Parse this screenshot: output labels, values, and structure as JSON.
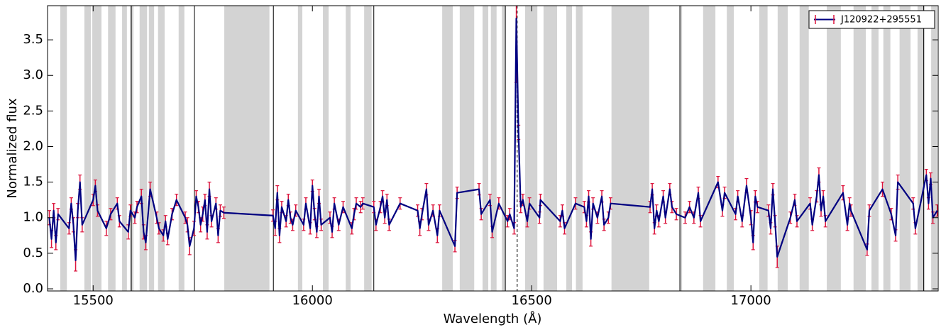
{
  "chart_data": {
    "type": "errorbar",
    "xlabel": "Wavelength (Å)",
    "ylabel": "Normalized flux",
    "xlim": [
      15396,
      17427
    ],
    "ylim": [
      -0.03,
      3.98
    ],
    "xticks": [
      15500,
      16000,
      16500,
      17000
    ],
    "yticks": [
      {
        "value": 0,
        "label": "0.0"
      },
      0.5,
      {
        "value": 1,
        "label": "1.0"
      },
      1.5,
      {
        "value": 2,
        "label": "2.0"
      },
      2.5,
      {
        "value": 3,
        "label": "3.0"
      },
      3.5
    ],
    "legend": "upper right",
    "error_color": "#dc143c",
    "shade_color": "#d3d3d3",
    "shaded_regions": [
      [
        15425,
        15440
      ],
      [
        15480,
        15495
      ],
      [
        15498,
        15519
      ],
      [
        15534,
        15551
      ],
      [
        15566,
        15577
      ],
      [
        15584,
        15592
      ],
      [
        15606,
        15623
      ],
      [
        15627,
        15639
      ],
      [
        15648,
        15663
      ],
      [
        15695,
        15708
      ],
      [
        15799,
        15902
      ],
      [
        15967,
        15977
      ],
      [
        16024,
        16037
      ],
      [
        16076,
        16087
      ],
      [
        16118,
        16135
      ],
      [
        16296,
        16320
      ],
      [
        16336,
        16369
      ],
      [
        16388,
        16401
      ],
      [
        16407,
        16420
      ],
      [
        16432,
        16440
      ],
      [
        16485,
        16513
      ],
      [
        16527,
        16558
      ],
      [
        16579,
        16592
      ],
      [
        16601,
        16616
      ],
      [
        16682,
        16768
      ],
      [
        16838,
        16843
      ],
      [
        16891,
        16919
      ],
      [
        16945,
        16961
      ],
      [
        17019,
        17038
      ],
      [
        17061,
        17084
      ],
      [
        17111,
        17132
      ],
      [
        17173,
        17205
      ],
      [
        17234,
        17262
      ],
      [
        17275,
        17291
      ],
      [
        17302,
        17318
      ],
      [
        17339,
        17364
      ],
      [
        17380,
        17396
      ],
      [
        17411,
        17424
      ]
    ],
    "vertical_lines": [
      15587,
      15731,
      15911,
      16140,
      16440,
      16838,
      17394
    ],
    "dashed_line": 16467,
    "series": [
      {
        "name": "J120922+295551",
        "color": "#000080",
        "x": [
          15400,
          15405,
          15410,
          15415,
          15420,
          15445,
          15450,
          15455,
          15460,
          15465,
          15470,
          15475,
          15500,
          15505,
          15510,
          15530,
          15540,
          15555,
          15560,
          15580,
          15585,
          15595,
          15600,
          15610,
          15615,
          15620,
          15630,
          15645,
          15650,
          15660,
          15665,
          15670,
          15680,
          15690,
          15710,
          15715,
          15720,
          15730,
          15735,
          15740,
          15745,
          15750,
          15755,
          15760,
          15765,
          15770,
          15780,
          15785,
          15790,
          15798,
          15910,
          15915,
          15920,
          15925,
          15930,
          15940,
          15945,
          15950,
          15955,
          15962,
          15980,
          15985,
          15995,
          16000,
          16005,
          16010,
          16015,
          16020,
          16040,
          16045,
          16050,
          16060,
          16070,
          16090,
          16095,
          16100,
          16110,
          16115,
          16140,
          16145,
          16155,
          16160,
          16165,
          16170,
          16175,
          16200,
          16240,
          16245,
          16250,
          16260,
          16265,
          16275,
          16285,
          16290,
          16325,
          16330,
          16380,
          16385,
          16405,
          16410,
          16425,
          16445,
          16450,
          16460,
          16465,
          16470,
          16475,
          16480,
          16490,
          16495,
          16518,
          16520,
          16565,
          16570,
          16575,
          16600,
          16620,
          16625,
          16630,
          16635,
          16640,
          16650,
          16660,
          16665,
          16675,
          16680,
          16770,
          16775,
          16780,
          16785,
          16790,
          16800,
          16805,
          16815,
          16820,
          16830,
          16850,
          16860,
          16870,
          16880,
          16885,
          16925,
          16935,
          16940,
          16965,
          16970,
          16980,
          16990,
          17000,
          17005,
          17010,
          17015,
          17040,
          17045,
          17050,
          17055,
          17060,
          17090,
          17100,
          17105,
          17135,
          17140,
          17150,
          17155,
          17160,
          17165,
          17170,
          17210,
          17220,
          17225,
          17228,
          17265,
          17270,
          17300,
          17320,
          17330,
          17335,
          17370,
          17375,
          17400,
          17405,
          17410,
          17415,
          17425
        ],
        "values": [
          1.0,
          0.7,
          1.1,
          0.65,
          1.05,
          0.85,
          1.2,
          0.9,
          0.4,
          1.1,
          1.5,
          0.9,
          1.25,
          1.45,
          1.1,
          0.85,
          1.05,
          1.2,
          0.95,
          0.8,
          1.1,
          1.0,
          1.15,
          1.3,
          0.8,
          0.65,
          1.4,
          1.0,
          0.85,
          0.75,
          0.95,
          0.7,
          1.05,
          1.25,
          1.0,
          0.9,
          0.6,
          0.85,
          1.3,
          1.15,
          0.9,
          1.05,
          1.25,
          0.8,
          1.4,
          0.95,
          1.2,
          0.75,
          1.1,
          1.07,
          1.03,
          0.85,
          1.35,
          0.75,
          1.15,
          0.95,
          1.25,
          1.0,
          0.9,
          1.1,
          0.9,
          1.2,
          0.85,
          1.45,
          1.05,
          0.8,
          1.3,
          0.9,
          1.0,
          0.8,
          1.2,
          0.9,
          1.15,
          0.85,
          1.05,
          1.2,
          1.15,
          1.2,
          1.15,
          0.9,
          1.15,
          1.3,
          1.0,
          1.25,
          0.9,
          1.2,
          1.1,
          0.85,
          1.05,
          1.4,
          0.9,
          1.1,
          0.75,
          1.1,
          0.6,
          1.35,
          1.4,
          1.05,
          1.25,
          0.8,
          1.2,
          0.95,
          1.05,
          0.85,
          3.8,
          2.2,
          1.15,
          1.25,
          0.95,
          1.2,
          1.0,
          1.25,
          0.95,
          1.1,
          0.85,
          1.2,
          1.15,
          0.95,
          1.3,
          0.7,
          1.2,
          1.0,
          1.3,
          0.9,
          1.0,
          1.2,
          1.15,
          1.4,
          0.85,
          1.1,
          0.95,
          1.3,
          1.0,
          1.4,
          1.15,
          1.05,
          1.0,
          1.15,
          1.0,
          1.35,
          0.95,
          1.5,
          1.1,
          1.35,
          1.05,
          1.3,
          0.95,
          1.45,
          1.0,
          0.65,
          1.3,
          1.15,
          1.1,
          0.85,
          1.4,
          0.95,
          0.45,
          1.0,
          1.25,
          0.95,
          1.2,
          0.9,
          1.3,
          1.6,
          1.1,
          1.3,
          0.95,
          1.35,
          0.9,
          1.2,
          1.1,
          0.55,
          1.1,
          1.4,
          1.05,
          0.75,
          1.5,
          1.2,
          0.85,
          1.6,
          1.2,
          1.55,
          1.0,
          1.1
        ],
        "errors": [
          0.1,
          0.12,
          0.1,
          0.1,
          0.08,
          0.08,
          0.08,
          0.1,
          0.15,
          0.1,
          0.1,
          0.1,
          0.08,
          0.08,
          0.08,
          0.1,
          0.08,
          0.08,
          0.08,
          0.1,
          0.08,
          0.08,
          0.08,
          0.1,
          0.1,
          0.1,
          0.1,
          0.08,
          0.08,
          0.08,
          0.08,
          0.08,
          0.08,
          0.08,
          0.08,
          0.1,
          0.12,
          0.1,
          0.08,
          0.08,
          0.1,
          0.1,
          0.08,
          0.1,
          0.1,
          0.08,
          0.08,
          0.1,
          0.08,
          0.08,
          0.08,
          0.1,
          0.1,
          0.1,
          0.08,
          0.08,
          0.08,
          0.08,
          0.08,
          0.08,
          0.08,
          0.08,
          0.08,
          0.08,
          0.08,
          0.08,
          0.1,
          0.08,
          0.08,
          0.08,
          0.08,
          0.08,
          0.08,
          0.08,
          0.08,
          0.08,
          0.08,
          0.08,
          0.08,
          0.08,
          0.08,
          0.08,
          0.08,
          0.08,
          0.08,
          0.08,
          0.08,
          0.1,
          0.08,
          0.08,
          0.08,
          0.08,
          0.1,
          0.08,
          0.08,
          0.08,
          0.08,
          0.08,
          0.08,
          0.08,
          0.08,
          0.08,
          0.08,
          0.08,
          0.9,
          0.1,
          0.08,
          0.08,
          0.08,
          0.08,
          0.08,
          0.08,
          0.08,
          0.08,
          0.08,
          0.08,
          0.08,
          0.08,
          0.08,
          0.1,
          0.08,
          0.08,
          0.08,
          0.08,
          0.08,
          0.08,
          0.08,
          0.08,
          0.08,
          0.08,
          0.08,
          0.08,
          0.08,
          0.08,
          0.08,
          0.08,
          0.08,
          0.08,
          0.08,
          0.08,
          0.08,
          0.08,
          0.08,
          0.08,
          0.08,
          0.08,
          0.08,
          0.1,
          0.1,
          0.1,
          0.08,
          0.08,
          0.08,
          0.08,
          0.08,
          0.08,
          0.15,
          0.08,
          0.08,
          0.08,
          0.08,
          0.08,
          0.08,
          0.1,
          0.08,
          0.08,
          0.08,
          0.1,
          0.08,
          0.08,
          0.08,
          0.08,
          0.08,
          0.1,
          0.08,
          0.08,
          0.1,
          0.08,
          0.08,
          0.08,
          0.08,
          0.08,
          0.08,
          0.08
        ]
      }
    ]
  }
}
